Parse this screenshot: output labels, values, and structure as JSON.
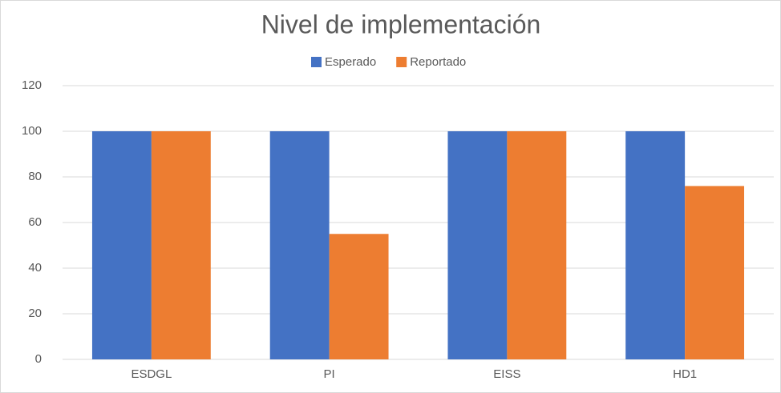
{
  "chart_data": {
    "type": "bar",
    "title": "Nivel de implementación",
    "categories": [
      "ESDGL",
      "PI",
      "EISS",
      "HD1"
    ],
    "series": [
      {
        "name": "Esperado",
        "color": "#4472c4",
        "values": [
          100,
          100,
          100,
          100
        ]
      },
      {
        "name": "Reportado",
        "color": "#ed7d31",
        "values": [
          100,
          55,
          100,
          76
        ]
      }
    ],
    "ylim": [
      0,
      120
    ],
    "yticks": [
      0,
      20,
      40,
      60,
      80,
      100,
      120
    ],
    "grid": true,
    "legend": "top"
  }
}
